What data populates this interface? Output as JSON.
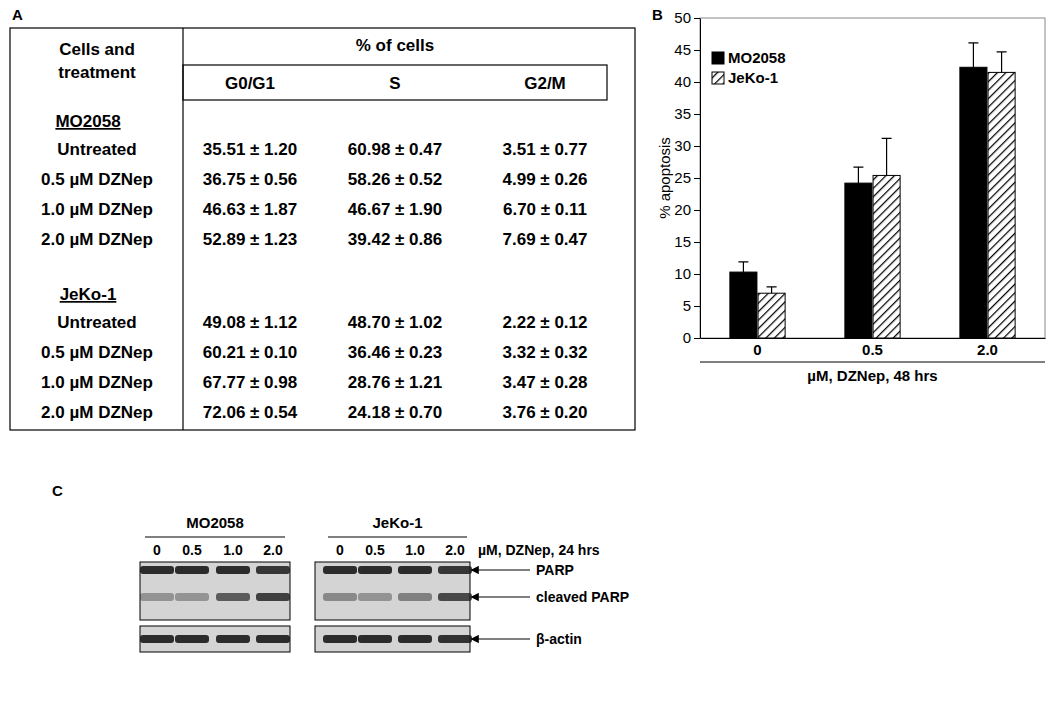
{
  "panels": [
    "A",
    "B",
    "C"
  ],
  "table": {
    "row_header": [
      "Cells and",
      "treatment"
    ],
    "group_header": "% of cells",
    "columns": [
      "G0/G1",
      "S",
      "G2/M"
    ],
    "groups": [
      {
        "name": "MO2058",
        "rows": [
          {
            "label": "Untreated",
            "cells": [
              "35.51 ± 1.20",
              "60.98 ± 0.47",
              "3.51 ± 0.77"
            ]
          },
          {
            "label": "0.5 µM DZNep",
            "cells": [
              "36.75 ± 0.56",
              "58.26 ± 0.52",
              "4.99 ± 0.26"
            ]
          },
          {
            "label": "1.0 µM DZNep",
            "cells": [
              "46.63 ± 1.87",
              "46.67 ± 1.90",
              "6.70 ± 0.11"
            ]
          },
          {
            "label": "2.0 µM DZNep",
            "cells": [
              "52.89 ± 1.23",
              "39.42 ± 0.86",
              "7.69 ± 0.47"
            ]
          }
        ]
      },
      {
        "name": "JeKo-1",
        "rows": [
          {
            "label": "Untreated",
            "cells": [
              "49.08 ± 1.12",
              "48.70 ± 1.02",
              "2.22 ± 0.12"
            ]
          },
          {
            "label": "0.5 µM DZNep",
            "cells": [
              "60.21 ± 0.10",
              "36.46 ± 0.23",
              "3.32 ± 0.32"
            ]
          },
          {
            "label": "1.0 µM DZNep",
            "cells": [
              "67.77 ± 0.98",
              "28.76 ± 1.21",
              "3.47 ± 0.28"
            ]
          },
          {
            "label": "2.0 µM DZNep",
            "cells": [
              "72.06 ± 0.54",
              "24.18 ± 0.70",
              "3.76 ± 0.20"
            ]
          }
        ]
      }
    ]
  },
  "chart_data": {
    "type": "bar",
    "categories": [
      "0",
      "0.5",
      "2.0"
    ],
    "x_label": "µM, DZNep, 48 hrs",
    "y_label": "% apoptosis",
    "ylim": [
      0,
      50
    ],
    "yticks": [
      0,
      5,
      10,
      15,
      20,
      25,
      30,
      35,
      40,
      45,
      50
    ],
    "legend": "top-left",
    "series": [
      {
        "name": "MO2058",
        "color": "#000000",
        "values": [
          10.3,
          24.2,
          42.3
        ],
        "errors": [
          1.6,
          2.5,
          3.8
        ]
      },
      {
        "name": "JeKo-1",
        "color": "#000000",
        "values": [
          7.0,
          25.4,
          41.5
        ],
        "errors": [
          1.0,
          5.8,
          3.2
        ]
      }
    ]
  },
  "blot": {
    "cell_lines": [
      "MO2058",
      "JeKo-1"
    ],
    "doses": [
      "0",
      "0.5",
      "1.0",
      "2.0"
    ],
    "dose_label": "µM, DZNep, 24 hrs",
    "bands": [
      "PARP",
      "cleaved PARP",
      "β-actin"
    ],
    "intensity": [
      [
        [
          0.9,
          0.9,
          0.9,
          0.85
        ],
        [
          0.35,
          0.35,
          0.65,
          0.8
        ],
        [
          0.9,
          0.9,
          0.9,
          0.9
        ]
      ],
      [
        [
          0.9,
          0.9,
          0.9,
          0.85
        ],
        [
          0.4,
          0.35,
          0.45,
          0.75
        ],
        [
          0.9,
          0.9,
          0.9,
          0.88
        ]
      ]
    ]
  }
}
